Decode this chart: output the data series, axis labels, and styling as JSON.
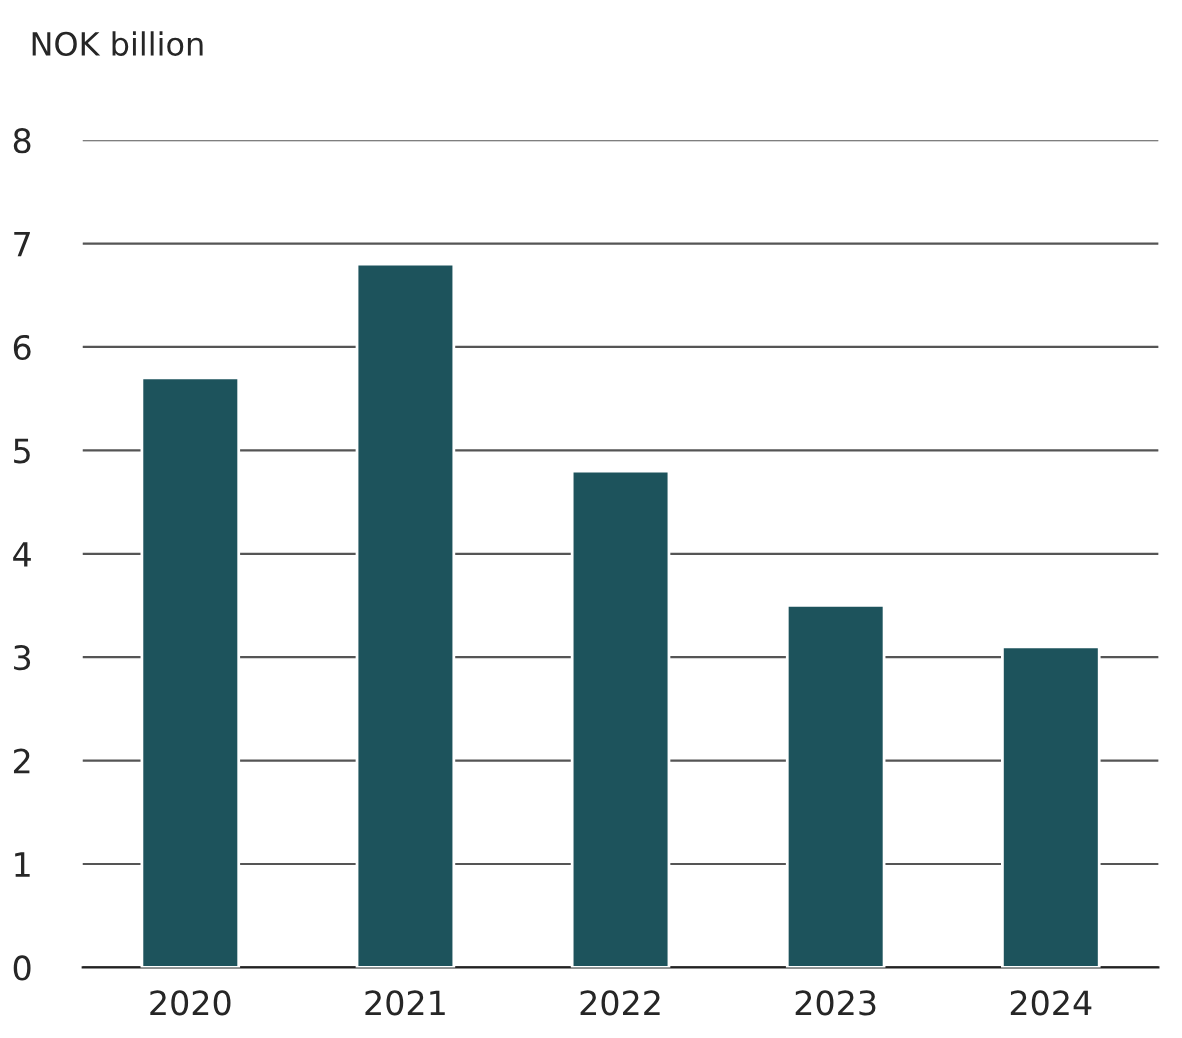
{
  "chart_data": {
    "type": "bar",
    "ylabel": "NOK billion",
    "categories": [
      "2020",
      "2021",
      "2022",
      "2023",
      "2024"
    ],
    "values": [
      5.7,
      6.8,
      4.8,
      3.5,
      3.1
    ],
    "color": "#1d535c",
    "ylim": [
      0,
      8
    ],
    "yticks": [
      0,
      1,
      2,
      3,
      4,
      5,
      6,
      7,
      8
    ],
    "grid": "y",
    "legend": false
  }
}
